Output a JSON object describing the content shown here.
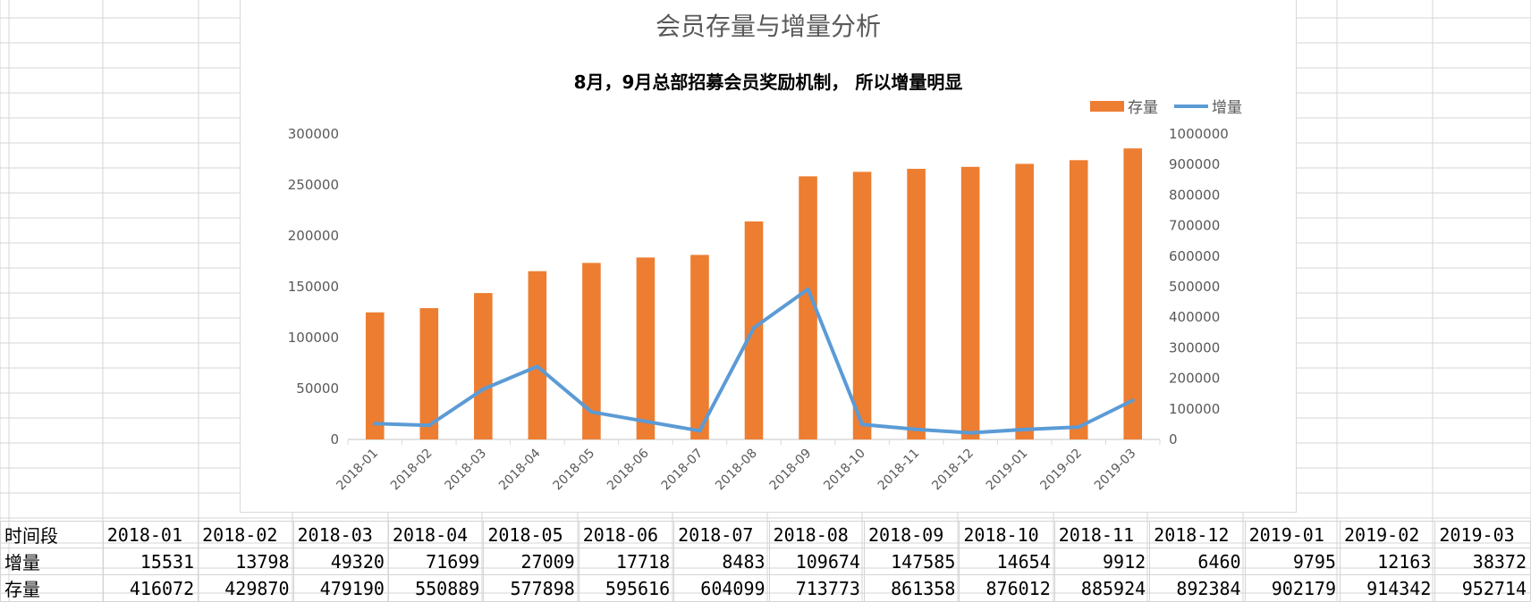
{
  "chart_data": {
    "type": "bar+line",
    "title": "会员存量与增量分析",
    "subtitle": "8月，9月总部招募会员奖励机制， 所以增量明显",
    "categories": [
      "2018-01",
      "2018-02",
      "2018-03",
      "2018-04",
      "2018-05",
      "2018-06",
      "2018-07",
      "2018-08",
      "2018-09",
      "2018-10",
      "2018-11",
      "2018-12",
      "2019-01",
      "2019-02",
      "2019-03"
    ],
    "series": [
      {
        "name": "存量",
        "type": "bar",
        "axis": "right",
        "color": "#ed7d31",
        "values": [
          416072,
          429870,
          479190,
          550889,
          577898,
          595616,
          604099,
          713773,
          861358,
          876012,
          885924,
          892384,
          902179,
          914342,
          952714
        ]
      },
      {
        "name": "增量",
        "type": "line",
        "axis": "left",
        "color": "#5b9bd5",
        "values": [
          15531,
          13798,
          49320,
          71699,
          27009,
          17718,
          8483,
          109674,
          147585,
          14654,
          9912,
          6460,
          9795,
          12163,
          38372
        ]
      }
    ],
    "y_left": {
      "min": 0,
      "max": 300000,
      "ticks": [
        "0",
        "50000",
        "100000",
        "150000",
        "200000",
        "250000",
        "300000"
      ]
    },
    "y_right": {
      "min": 0,
      "max": 1000000,
      "ticks": [
        "0",
        "100000",
        "200000",
        "300000",
        "400000",
        "500000",
        "600000",
        "700000",
        "800000",
        "900000",
        "1000000"
      ]
    },
    "legend_position": "top-right",
    "grid": false
  },
  "table": {
    "row_labels": [
      "时间段",
      "增量",
      "存量"
    ]
  }
}
